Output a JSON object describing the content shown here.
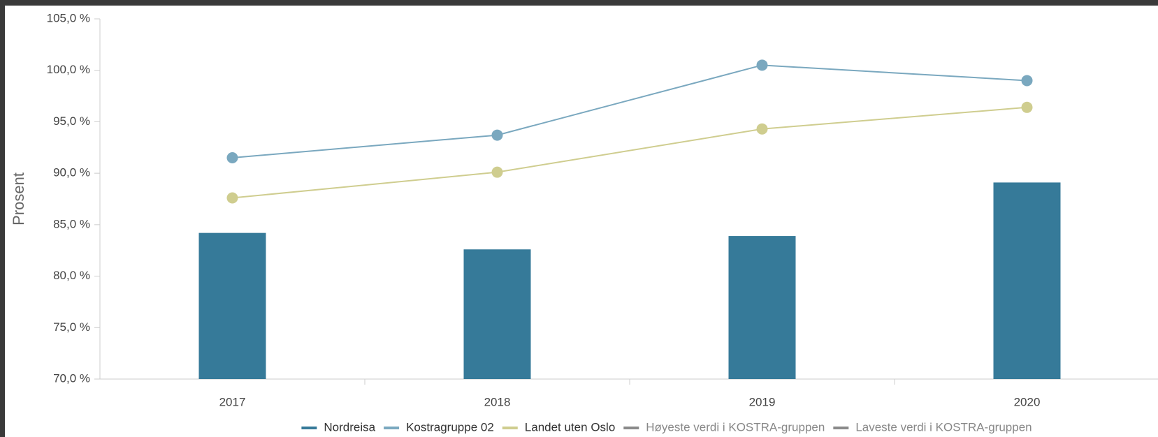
{
  "chart_data": {
    "type": "bar-line",
    "y_label": "Prosent",
    "categories": [
      "2017",
      "2018",
      "2019",
      "2020"
    ],
    "series": [
      {
        "name": "Nordreisa",
        "type": "bar",
        "color": "#367a99",
        "values": [
          84.2,
          82.6,
          83.9,
          89.1
        ]
      },
      {
        "name": "Kostragruppe 02",
        "type": "line",
        "color": "#7aa8bf",
        "values": [
          91.5,
          93.7,
          100.5,
          99.0
        ]
      },
      {
        "name": "Landet uten Oslo",
        "type": "line",
        "color": "#cfcd8f",
        "values": [
          87.6,
          90.1,
          94.3,
          96.4
        ]
      },
      {
        "name": "Høyeste verdi i KOSTRA-gruppen",
        "type": "line",
        "color": "#8a8a8a",
        "values": [
          null,
          null,
          null,
          null
        ]
      },
      {
        "name": "Laveste verdi i KOSTRA-gruppen",
        "type": "line",
        "color": "#8a8a8a",
        "values": [
          null,
          null,
          null,
          null
        ]
      }
    ],
    "ylim": [
      70,
      105
    ],
    "yticks": [
      {
        "value": 70,
        "label": "70,0 %"
      },
      {
        "value": 75,
        "label": "75,0 %"
      },
      {
        "value": 80,
        "label": "80,0 %"
      },
      {
        "value": 85,
        "label": "85,0 %"
      },
      {
        "value": 90,
        "label": "90,0 %"
      },
      {
        "value": 95,
        "label": "95,0 %"
      },
      {
        "value": 100,
        "label": "100,0 %"
      },
      {
        "value": 105,
        "label": "105,0 %"
      }
    ],
    "grid": false
  }
}
